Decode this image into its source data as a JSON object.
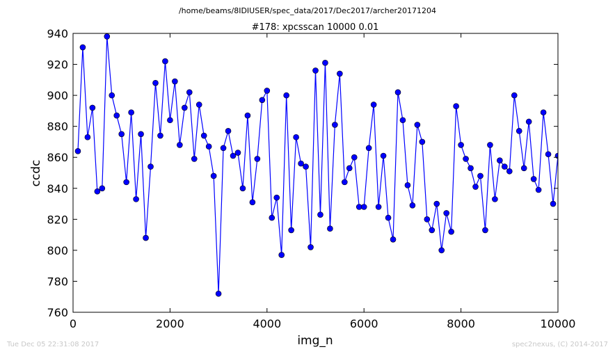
{
  "page": {
    "suptitle": "/home/beams/8IDIUSER/spec_data/2017/Dec2017/archer20171204",
    "footer_left": "Tue Dec 05 22:31:08 2017",
    "footer_right": "spec2nexus, (C) 2014-2017"
  },
  "chart_data": {
    "type": "line",
    "title": "#178: xpcsscan 10000 0.01",
    "xlabel": "img_n",
    "ylabel": "ccdc",
    "xlim": [
      0,
      10000
    ],
    "ylim": [
      760,
      940
    ],
    "xticks": [
      0,
      2000,
      4000,
      6000,
      8000,
      10000
    ],
    "yticks": [
      760,
      780,
      800,
      820,
      840,
      860,
      880,
      900,
      920,
      940
    ],
    "grid": false,
    "line_color": "#0000ff",
    "marker": "circle",
    "series": [
      {
        "x": [
          100,
          200,
          300,
          400,
          500,
          600,
          700,
          800,
          900,
          1000,
          1100,
          1200,
          1300,
          1400,
          1500,
          1600,
          1700,
          1800,
          1900,
          2000,
          2100,
          2200,
          2300,
          2400,
          2500,
          2600,
          2700,
          2800,
          2900,
          3000,
          3100,
          3200,
          3300,
          3400,
          3500,
          3600,
          3700,
          3800,
          3900,
          4000,
          4100,
          4200,
          4300,
          4400,
          4500,
          4600,
          4700,
          4800,
          4900,
          5000,
          5100,
          5200,
          5300,
          5400,
          5500,
          5600,
          5700,
          5800,
          5900,
          6000,
          6100,
          6200,
          6300,
          6400,
          6500,
          6600,
          6700,
          6800,
          6900,
          7000,
          7100,
          7200,
          7300,
          7400,
          7500,
          7600,
          7700,
          7800,
          7900,
          8000,
          8100,
          8200,
          8300,
          8400,
          8500,
          8600,
          8700,
          8800,
          8900,
          9000,
          9100,
          9200,
          9300,
          9400,
          9500,
          9600,
          9700,
          9800,
          9900,
          10000
        ],
        "values": [
          864,
          931,
          873,
          892,
          838,
          840,
          938,
          900,
          887,
          875,
          844,
          889,
          833,
          875,
          808,
          854,
          908,
          874,
          922,
          884,
          909,
          868,
          892,
          902,
          859,
          894,
          874,
          867,
          848,
          772,
          866,
          877,
          861,
          863,
          840,
          887,
          831,
          859,
          897,
          903,
          821,
          834,
          797,
          900,
          813,
          873,
          856,
          854,
          802,
          916,
          823,
          921,
          814,
          881,
          914,
          844,
          853,
          860,
          828,
          828,
          866,
          894,
          828,
          861,
          821,
          807,
          902,
          884,
          842,
          829,
          881,
          870,
          820,
          813,
          830,
          800,
          824,
          812,
          893,
          868,
          859,
          853,
          841,
          848,
          813,
          868,
          833,
          858,
          854,
          851,
          900,
          877,
          853,
          883,
          846,
          839,
          889,
          862,
          830,
          861
        ]
      }
    ]
  }
}
